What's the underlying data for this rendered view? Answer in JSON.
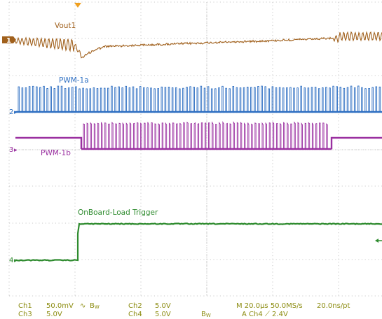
{
  "colors": {
    "background": "#ffffff",
    "grid": "#b9b9b9",
    "ch1": "#a0601c",
    "ch2": "#2e6fc2",
    "ch3": "#9a2fa0",
    "ch4": "#2e8b2e",
    "readout": "#8c8c10",
    "trigger_marker": "#f0a020"
  },
  "traces": {
    "ch1": {
      "label": "Vout1",
      "marker": "1"
    },
    "ch2": {
      "label": "PWM-1a",
      "marker": "2"
    },
    "ch3": {
      "label": "PWM-1b",
      "marker": "3"
    },
    "ch4": {
      "label": "OnBoard-Load Trigger",
      "marker": "4"
    }
  },
  "status": {
    "ch1_name": "Ch1",
    "ch1_scale": "50.0mV",
    "ch1_coupling": "∿",
    "bw1": "B",
    "bw1_sub": "W",
    "ch2_name": "Ch2",
    "ch2_scale": "5.0V",
    "ch3_name": "Ch3",
    "ch3_scale": "5.0V",
    "ch4_name": "Ch4",
    "ch4_scale": "5.0V",
    "bw2": "B",
    "bw2_sub": "W",
    "timebase": "M 20.0µs 50.0MS/s",
    "resolution": "20.0ns/pt",
    "trigger": "A  Ch4  ⟋  2.4V"
  }
}
